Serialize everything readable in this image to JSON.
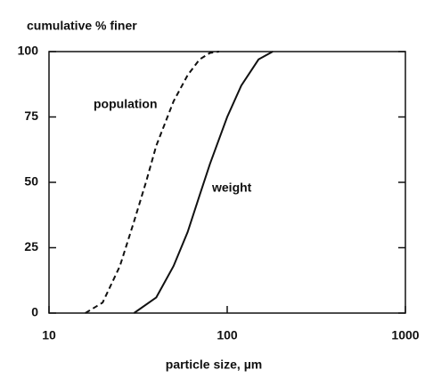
{
  "chart_data": {
    "type": "line",
    "ylabel": "cumulative % finer",
    "xlabel": "particle size, µm",
    "xscale": "log",
    "xlim": [
      10,
      1000
    ],
    "xticks": [
      10,
      100,
      1000
    ],
    "ylim": [
      0,
      100
    ],
    "yticks": [
      0,
      25,
      50,
      75,
      100
    ],
    "series": [
      {
        "name": "population",
        "color": "#111111",
        "dash": true,
        "x": [
          16,
          20,
          25,
          30,
          35,
          40,
          50,
          60,
          70,
          80,
          90
        ],
        "values": [
          0,
          4,
          18,
          35,
          50,
          64,
          81,
          91,
          97,
          99.5,
          100
        ]
      },
      {
        "name": "weight",
        "color": "#111111",
        "dash": false,
        "x": [
          30,
          40,
          50,
          60,
          70,
          80,
          100,
          120,
          150,
          180
        ],
        "values": [
          0,
          6,
          18,
          31,
          45,
          57,
          75,
          87,
          97,
          100
        ]
      }
    ]
  }
}
